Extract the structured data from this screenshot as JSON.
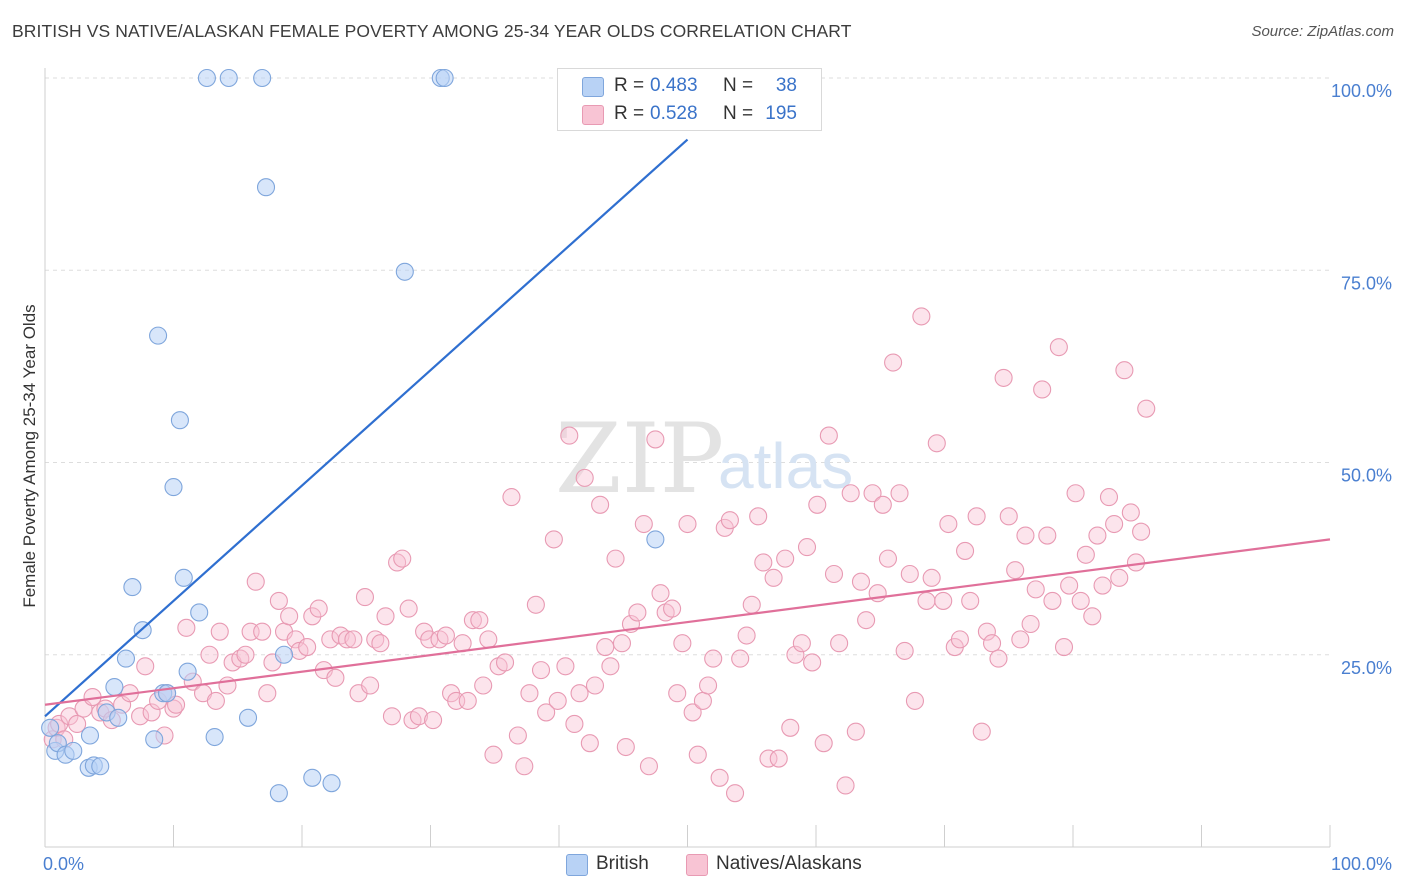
{
  "title": "BRITISH VS NATIVE/ALASKAN FEMALE POVERTY AMONG 25-34 YEAR OLDS CORRELATION CHART",
  "source": "Source: ZipAtlas.com",
  "watermark": {
    "zip": "ZIP",
    "atlas": "atlas"
  },
  "legend_top": [
    {
      "r_label": "R =",
      "r_value": "0.483",
      "n_label": "N =",
      "n_value": "38"
    },
    {
      "r_label": "R =",
      "r_value": "0.528",
      "n_label": "N =",
      "n_value": "195"
    }
  ],
  "legend_bottom": [
    "British",
    "Natives/Alaskans"
  ],
  "colors": {
    "british_fill": "#b8d2f5",
    "british_stroke": "#7fa6dc",
    "british_line": "#2f6fd0",
    "native_fill": "#f8c4d4",
    "native_stroke": "#e89ab3",
    "native_line": "#e0709a",
    "grid": "#dddddd",
    "axis_label": "#4a7fd0"
  },
  "chart_data": {
    "type": "scatter",
    "title": "BRITISH VS NATIVE/ALASKAN FEMALE POVERTY AMONG 25-34 YEAR OLDS CORRELATION CHART",
    "xlabel": "",
    "ylabel": "Female Poverty Among 25-34 Year Olds",
    "xlim": [
      0,
      100
    ],
    "ylim": [
      0,
      100
    ],
    "x_tick_labels": [
      "0.0%",
      "100.0%"
    ],
    "y_ticks": [
      25,
      50,
      75,
      100
    ],
    "y_tick_labels": [
      "25.0%",
      "50.0%",
      "75.0%",
      "100.0%"
    ],
    "grid": true,
    "legend_placement": "top-center",
    "series": [
      {
        "name": "British",
        "r": 0.483,
        "n": 38,
        "trend": {
          "x": [
            0,
            50
          ],
          "y": [
            17,
            92
          ]
        },
        "points": [
          [
            0.4,
            15.5
          ],
          [
            0.8,
            12.5
          ],
          [
            1.0,
            13.5
          ],
          [
            1.6,
            12.0
          ],
          [
            2.2,
            12.5
          ],
          [
            3.4,
            10.3
          ],
          [
            3.5,
            14.5
          ],
          [
            3.8,
            10.6
          ],
          [
            4.3,
            10.5
          ],
          [
            4.8,
            17.5
          ],
          [
            5.4,
            20.8
          ],
          [
            5.7,
            16.8
          ],
          [
            6.3,
            24.5
          ],
          [
            6.8,
            33.8
          ],
          [
            7.6,
            28.2
          ],
          [
            9.2,
            20.0
          ],
          [
            8.5,
            14.0
          ],
          [
            8.8,
            66.5
          ],
          [
            9.5,
            20.0
          ],
          [
            10.0,
            46.8
          ],
          [
            10.5,
            55.5
          ],
          [
            10.8,
            35.0
          ],
          [
            11.1,
            22.8
          ],
          [
            12.0,
            30.5
          ],
          [
            12.6,
            100
          ],
          [
            13.2,
            14.3
          ],
          [
            14.3,
            100
          ],
          [
            15.8,
            16.8
          ],
          [
            16.9,
            100
          ],
          [
            17.2,
            85.8
          ],
          [
            18.2,
            7.0
          ],
          [
            18.6,
            25.0
          ],
          [
            20.8,
            9.0
          ],
          [
            22.3,
            8.3
          ],
          [
            28.0,
            74.8
          ],
          [
            30.8,
            100
          ],
          [
            31.1,
            100
          ],
          [
            47.5,
            40.0
          ]
        ]
      },
      {
        "name": "Natives/Alaskans",
        "r": 0.528,
        "n": 195,
        "trend": {
          "x": [
            0,
            100
          ],
          "y": [
            18.5,
            40.0
          ]
        },
        "points": [
          [
            0.6,
            14.0
          ],
          [
            0.9,
            15.5
          ],
          [
            1.1,
            16.0
          ],
          [
            1.5,
            14.0
          ],
          [
            1.9,
            17.0
          ],
          [
            2.5,
            16.0
          ],
          [
            3.0,
            18.0
          ],
          [
            3.7,
            19.5
          ],
          [
            4.3,
            17.5
          ],
          [
            4.7,
            18.0
          ],
          [
            5.2,
            16.5
          ],
          [
            6.0,
            18.5
          ],
          [
            6.6,
            20.0
          ],
          [
            7.4,
            17.0
          ],
          [
            7.8,
            23.5
          ],
          [
            8.3,
            17.5
          ],
          [
            8.8,
            19.0
          ],
          [
            9.5,
            20.0
          ],
          [
            10.0,
            18.0
          ],
          [
            10.2,
            18.5
          ],
          [
            9.3,
            14.5
          ],
          [
            11.0,
            28.5
          ],
          [
            11.5,
            21.5
          ],
          [
            12.3,
            20.0
          ],
          [
            12.8,
            25.0
          ],
          [
            13.3,
            19.0
          ],
          [
            13.6,
            28.0
          ],
          [
            14.2,
            21.0
          ],
          [
            14.6,
            24.0
          ],
          [
            15.2,
            24.5
          ],
          [
            15.6,
            25.0
          ],
          [
            16.0,
            28.0
          ],
          [
            16.4,
            34.5
          ],
          [
            16.9,
            28.0
          ],
          [
            17.3,
            20.0
          ],
          [
            17.7,
            24.0
          ],
          [
            18.2,
            32.0
          ],
          [
            18.6,
            28.0
          ],
          [
            19.0,
            30.0
          ],
          [
            19.5,
            27.0
          ],
          [
            19.8,
            25.5
          ],
          [
            20.4,
            26.0
          ],
          [
            20.8,
            30.0
          ],
          [
            21.3,
            31.0
          ],
          [
            21.7,
            23.0
          ],
          [
            22.2,
            27.0
          ],
          [
            22.6,
            22.0
          ],
          [
            23.0,
            27.5
          ],
          [
            23.5,
            27.0
          ],
          [
            24.0,
            27.0
          ],
          [
            24.4,
            20.0
          ],
          [
            24.9,
            32.5
          ],
          [
            25.3,
            21.0
          ],
          [
            25.7,
            27.0
          ],
          [
            26.1,
            26.5
          ],
          [
            26.5,
            30.0
          ],
          [
            27.0,
            17.0
          ],
          [
            27.4,
            37.0
          ],
          [
            27.8,
            37.5
          ],
          [
            28.3,
            31.0
          ],
          [
            28.6,
            16.5
          ],
          [
            29.1,
            17.0
          ],
          [
            29.5,
            28.0
          ],
          [
            29.9,
            27.0
          ],
          [
            30.2,
            16.5
          ],
          [
            30.7,
            27.0
          ],
          [
            31.2,
            27.5
          ],
          [
            31.6,
            20.0
          ],
          [
            32.0,
            19.0
          ],
          [
            32.5,
            26.5
          ],
          [
            32.9,
            19.0
          ],
          [
            33.3,
            29.5
          ],
          [
            33.8,
            29.5
          ],
          [
            34.1,
            21.0
          ],
          [
            34.5,
            27.0
          ],
          [
            34.9,
            12.0
          ],
          [
            35.3,
            23.5
          ],
          [
            35.8,
            24.0
          ],
          [
            36.3,
            45.5
          ],
          [
            36.8,
            14.5
          ],
          [
            37.3,
            10.5
          ],
          [
            37.7,
            20.0
          ],
          [
            38.2,
            31.5
          ],
          [
            38.6,
            23.0
          ],
          [
            39.0,
            17.5
          ],
          [
            39.6,
            40.0
          ],
          [
            39.9,
            19.0
          ],
          [
            40.5,
            23.5
          ],
          [
            40.8,
            53.5
          ],
          [
            41.2,
            16.0
          ],
          [
            41.6,
            20.0
          ],
          [
            42.0,
            48.0
          ],
          [
            42.4,
            13.5
          ],
          [
            42.8,
            21.0
          ],
          [
            43.2,
            44.5
          ],
          [
            43.6,
            26.0
          ],
          [
            44.0,
            23.5
          ],
          [
            44.4,
            37.5
          ],
          [
            44.9,
            26.5
          ],
          [
            45.2,
            13.0
          ],
          [
            45.6,
            29.0
          ],
          [
            46.1,
            30.5
          ],
          [
            46.6,
            42.0
          ],
          [
            47.0,
            10.5
          ],
          [
            47.5,
            53.0
          ],
          [
            47.9,
            33.0
          ],
          [
            48.3,
            30.5
          ],
          [
            48.8,
            31.0
          ],
          [
            49.2,
            20.0
          ],
          [
            49.6,
            26.5
          ],
          [
            50.0,
            42.0
          ],
          [
            50.4,
            17.5
          ],
          [
            50.8,
            12.0
          ],
          [
            51.2,
            19.0
          ],
          [
            51.6,
            21.0
          ],
          [
            52.0,
            24.5
          ],
          [
            52.5,
            9.0
          ],
          [
            52.9,
            41.5
          ],
          [
            53.3,
            42.5
          ],
          [
            53.7,
            7.0
          ],
          [
            54.1,
            24.5
          ],
          [
            54.6,
            27.5
          ],
          [
            55.0,
            31.5
          ],
          [
            55.5,
            43.0
          ],
          [
            55.9,
            37.0
          ],
          [
            56.3,
            11.5
          ],
          [
            56.7,
            35.0
          ],
          [
            57.1,
            11.5
          ],
          [
            57.6,
            37.5
          ],
          [
            58.0,
            15.5
          ],
          [
            58.4,
            25.0
          ],
          [
            58.9,
            26.5
          ],
          [
            59.3,
            39.0
          ],
          [
            59.7,
            24.0
          ],
          [
            60.1,
            44.5
          ],
          [
            60.6,
            13.5
          ],
          [
            61.0,
            53.5
          ],
          [
            61.4,
            35.5
          ],
          [
            61.8,
            26.5
          ],
          [
            62.3,
            8.0
          ],
          [
            62.7,
            46.0
          ],
          [
            63.1,
            15.0
          ],
          [
            63.5,
            34.5
          ],
          [
            63.9,
            29.5
          ],
          [
            64.4,
            46.0
          ],
          [
            64.8,
            33.0
          ],
          [
            65.2,
            44.5
          ],
          [
            65.6,
            37.5
          ],
          [
            66.0,
            63.0
          ],
          [
            66.5,
            46.0
          ],
          [
            66.9,
            25.5
          ],
          [
            67.3,
            35.5
          ],
          [
            67.7,
            19.0
          ],
          [
            68.2,
            69.0
          ],
          [
            68.6,
            32.0
          ],
          [
            69.0,
            35.0
          ],
          [
            69.4,
            52.5
          ],
          [
            69.9,
            32.0
          ],
          [
            70.3,
            42.0
          ],
          [
            70.8,
            26.0
          ],
          [
            71.2,
            27.0
          ],
          [
            71.6,
            38.5
          ],
          [
            72.0,
            32.0
          ],
          [
            72.5,
            43.0
          ],
          [
            72.9,
            15.0
          ],
          [
            73.3,
            28.0
          ],
          [
            73.7,
            26.5
          ],
          [
            74.2,
            24.5
          ],
          [
            74.6,
            61.0
          ],
          [
            75.0,
            43.0
          ],
          [
            75.5,
            36.0
          ],
          [
            75.9,
            27.0
          ],
          [
            76.3,
            40.5
          ],
          [
            76.7,
            29.0
          ],
          [
            77.1,
            33.5
          ],
          [
            77.6,
            59.5
          ],
          [
            78.0,
            40.5
          ],
          [
            78.4,
            32.0
          ],
          [
            78.9,
            65.0
          ],
          [
            79.3,
            26.0
          ],
          [
            79.7,
            34.0
          ],
          [
            80.2,
            46.0
          ],
          [
            80.6,
            32.0
          ],
          [
            81.0,
            38.0
          ],
          [
            81.5,
            30.0
          ],
          [
            81.9,
            40.5
          ],
          [
            82.3,
            34.0
          ],
          [
            82.8,
            45.5
          ],
          [
            83.2,
            42.0
          ],
          [
            83.6,
            35.0
          ],
          [
            84.0,
            62.0
          ],
          [
            84.5,
            43.5
          ],
          [
            84.9,
            37.0
          ],
          [
            85.3,
            41.0
          ],
          [
            85.7,
            57.0
          ]
        ]
      }
    ]
  }
}
